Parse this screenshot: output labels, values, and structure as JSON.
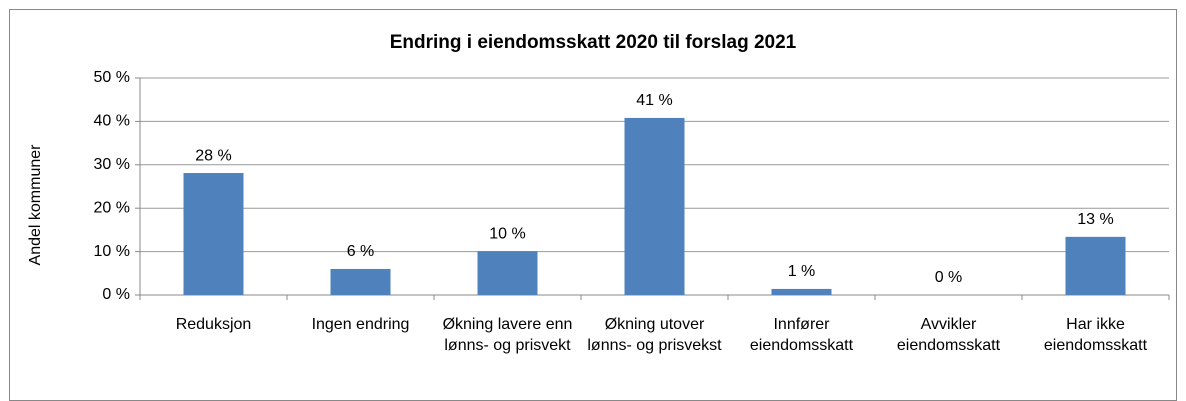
{
  "chart_data": {
    "type": "bar",
    "title": "Endring i eiendomsskatt 2020 til forslag 2021",
    "ylabel": "Andel kommuner",
    "categories": [
      "Reduksjon",
      "Ingen endring",
      "Økning lavere enn lønns- og prisvekt",
      "Økning utover lønns- og prisvekst",
      "Innfører eiendomsskatt",
      "Avvikler eiendomsskatt",
      "Har ikke eiendomsskatt"
    ],
    "values": [
      28.1,
      6,
      10.1,
      40.8,
      1.4,
      0,
      13.4
    ],
    "value_labels": [
      "28 %",
      "6 %",
      "10 %",
      "41 %",
      "1 %",
      "0 %",
      "13 %"
    ],
    "color": "#4f81bd",
    "ylim": [
      0,
      50
    ],
    "yticks": [
      {
        "value": 0,
        "label": "0 %"
      },
      {
        "value": 10,
        "label": "10 %"
      },
      {
        "value": 20,
        "label": "20 %"
      },
      {
        "value": 30,
        "label": "30 %"
      },
      {
        "value": 40,
        "label": "40 %"
      },
      {
        "value": 50,
        "label": "50 %"
      }
    ],
    "grid": true
  }
}
